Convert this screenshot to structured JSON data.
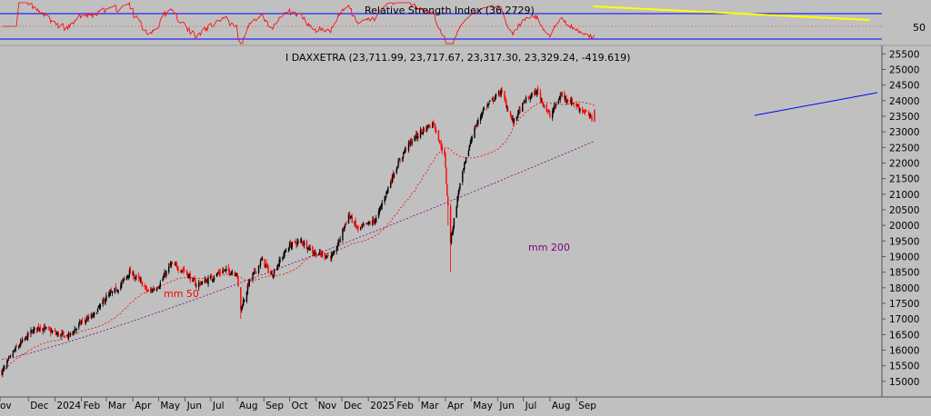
{
  "rsi_panel": {
    "title": "Relative Strength Index (36.2729)",
    "level_label": "50"
  },
  "price_panel": {
    "title": "I DAXXETRA (23,711.99, 23,717.67, 23,317.30, 23,329.24, -419.619)",
    "y_ticks": [
      "25500",
      "25000",
      "24500",
      "24000",
      "23500",
      "23000",
      "22500",
      "22000",
      "21500",
      "21000",
      "20500",
      "20000",
      "19500",
      "19000",
      "18500",
      "18000",
      "17500",
      "17000",
      "16500",
      "16000",
      "15500",
      "15000"
    ],
    "annotations": {
      "mm50": "mm 50",
      "mm200": "mm 200"
    }
  },
  "x_axis": {
    "labels": [
      "ov",
      "Dec",
      "2024",
      "Feb",
      "Mar",
      "Apr",
      "May",
      "Jun",
      "Jul",
      "Aug",
      "Sep",
      "Oct",
      "Nov",
      "Dec",
      "2025",
      "Feb",
      "Mar",
      "Apr",
      "May",
      "Jun",
      "Jul",
      "Aug",
      "Sep"
    ]
  },
  "colors": {
    "background": "#c0c0c0",
    "up_candle": "#000000",
    "down_candle": "#ff0000",
    "mm50": "#ff0000",
    "mm200": "#800080",
    "trendline": "#0000ff",
    "rsi_trendline": "#ffff00",
    "rsi_line": "#ff0000"
  },
  "chart_data": {
    "type": "candlestick",
    "ylim": [
      14500,
      25800
    ],
    "anchors": [
      {
        "date": "2023-10-31",
        "close": 15300
      },
      {
        "date": "2023-11-15",
        "close": 16000
      },
      {
        "date": "2023-12-05",
        "close": 16600
      },
      {
        "date": "2023-12-14",
        "close": 16750
      },
      {
        "date": "2024-01-05",
        "close": 16500
      },
      {
        "date": "2024-01-17",
        "close": 16450
      },
      {
        "date": "2024-02-01",
        "close": 16900
      },
      {
        "date": "2024-02-15",
        "close": 17100
      },
      {
        "date": "2024-03-01",
        "close": 17700
      },
      {
        "date": "2024-03-15",
        "close": 18000
      },
      {
        "date": "2024-03-28",
        "close": 18500
      },
      {
        "date": "2024-04-10",
        "close": 18200
      },
      {
        "date": "2024-04-19",
        "close": 17850
      },
      {
        "date": "2024-05-02",
        "close": 18100
      },
      {
        "date": "2024-05-15",
        "close": 18750
      },
      {
        "date": "2024-05-31",
        "close": 18550
      },
      {
        "date": "2024-06-14",
        "close": 18100
      },
      {
        "date": "2024-06-28",
        "close": 18250
      },
      {
        "date": "2024-07-15",
        "close": 18550
      },
      {
        "date": "2024-07-31",
        "close": 18500
      },
      {
        "date": "2024-08-05",
        "close": 17300
      },
      {
        "date": "2024-08-15",
        "close": 18200
      },
      {
        "date": "2024-08-30",
        "close": 18900
      },
      {
        "date": "2024-09-10",
        "close": 18400
      },
      {
        "date": "2024-09-30",
        "close": 19350
      },
      {
        "date": "2024-10-15",
        "close": 19500
      },
      {
        "date": "2024-10-31",
        "close": 19100
      },
      {
        "date": "2024-11-21",
        "close": 19000
      },
      {
        "date": "2024-12-09",
        "close": 20350
      },
      {
        "date": "2024-12-20",
        "close": 19850
      },
      {
        "date": "2025-01-10",
        "close": 20200
      },
      {
        "date": "2025-01-31",
        "close": 21700
      },
      {
        "date": "2025-02-14",
        "close": 22500
      },
      {
        "date": "2025-03-03",
        "close": 23000
      },
      {
        "date": "2025-03-18",
        "close": 23300
      },
      {
        "date": "2025-03-31",
        "close": 22200
      },
      {
        "date": "2025-04-04",
        "close": 20600
      },
      {
        "date": "2025-04-07",
        "close": 19500
      },
      {
        "date": "2025-04-17",
        "close": 21200
      },
      {
        "date": "2025-05-02",
        "close": 22900
      },
      {
        "date": "2025-05-15",
        "close": 23700
      },
      {
        "date": "2025-06-05",
        "close": 24300
      },
      {
        "date": "2025-06-19",
        "close": 23300
      },
      {
        "date": "2025-07-03",
        "close": 24000
      },
      {
        "date": "2025-07-17",
        "close": 24300
      },
      {
        "date": "2025-08-01",
        "close": 23500
      },
      {
        "date": "2025-08-14",
        "close": 24200
      },
      {
        "date": "2025-08-29",
        "close": 23900
      },
      {
        "date": "2025-09-10",
        "close": 23650
      },
      {
        "date": "2025-09-22",
        "close": 23330
      }
    ],
    "last": {
      "open": 23711.99,
      "high": 23717.67,
      "low": 23317.3,
      "close": 23329.24,
      "change": -419.619
    },
    "rsi": {
      "value": 36.2729,
      "levels": [
        30,
        50,
        70
      ]
    },
    "indicators": [
      "mm 50",
      "mm 200"
    ]
  }
}
